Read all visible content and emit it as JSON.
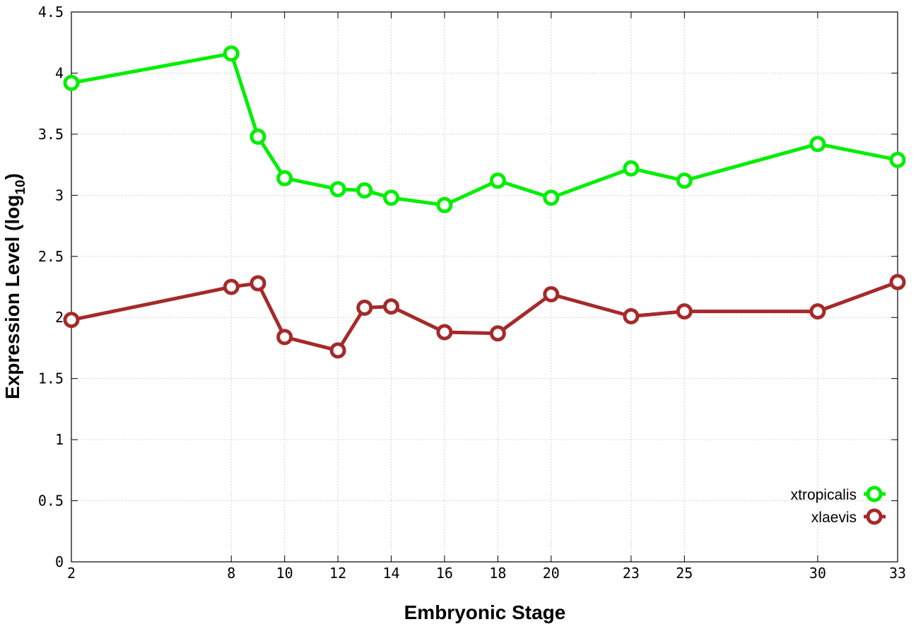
{
  "chart_data": {
    "type": "line",
    "xlabel": "Embryonic Stage",
    "ylabel": "Expression Level (log",
    "ylabel_sub": "10",
    "ylabel_close": ")",
    "xlim": [
      2,
      33
    ],
    "ylim": [
      0,
      4.5
    ],
    "x_ticks": [
      2,
      8,
      10,
      12,
      14,
      16,
      18,
      20,
      23,
      25,
      30,
      33
    ],
    "y_ticks": [
      {
        "value": 0,
        "label": "0"
      },
      {
        "value": 0.5,
        "label": "0.5"
      },
      {
        "value": 1,
        "label": "1"
      },
      {
        "value": 1.5,
        "label": "1.5"
      },
      {
        "value": 2,
        "label": "2"
      },
      {
        "value": 2.5,
        "label": "2.5"
      },
      {
        "value": 3,
        "label": "3"
      },
      {
        "value": 3.5,
        "label": "3.5"
      },
      {
        "value": 4,
        "label": "4"
      },
      {
        "value": 4.5,
        "label": "4.5"
      }
    ],
    "grid": true,
    "legend_position": "bottom-right",
    "x": [
      2,
      8,
      9,
      10,
      12,
      13,
      14,
      16,
      18,
      20,
      23,
      25,
      30,
      33
    ],
    "series": [
      {
        "name": "xtropicalis",
        "color": "#00ee00",
        "values": [
          3.92,
          4.16,
          3.48,
          3.14,
          3.05,
          3.04,
          2.98,
          2.92,
          3.12,
          2.98,
          3.22,
          3.12,
          3.42,
          3.29
        ]
      },
      {
        "name": "xlaevis",
        "color": "#a52a2a",
        "values": [
          1.98,
          2.25,
          2.28,
          1.84,
          1.73,
          2.08,
          2.09,
          1.88,
          1.87,
          2.19,
          2.01,
          2.05,
          2.05,
          2.29
        ]
      }
    ]
  }
}
